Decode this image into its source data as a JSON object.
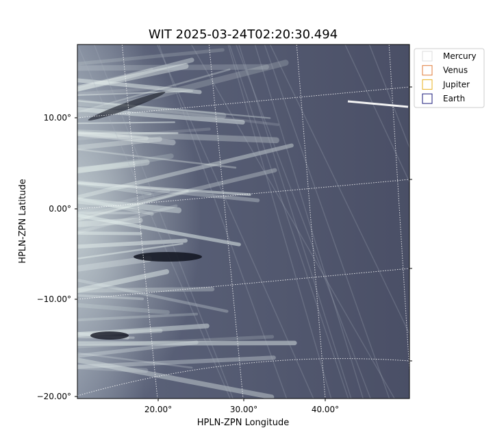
{
  "title": "WIT 2025-03-24T02:20:30.494",
  "x_axis": {
    "label": "HPLN-ZPN Longitude",
    "ticks": [
      "20.00°",
      "30.00°",
      "40.00°"
    ]
  },
  "y_axis": {
    "label": "HPLN-ZPN Latitude",
    "ticks": [
      "10.00°",
      "0.00°",
      "−10.00°",
      "−20.00°"
    ]
  },
  "legend": [
    {
      "label": "Mercury",
      "color": "#dddddd"
    },
    {
      "label": "Venus",
      "color": "#e07b39"
    },
    {
      "label": "Jupiter",
      "color": "#e8b020"
    },
    {
      "label": "Earth",
      "color": "#1a1a7a"
    }
  ]
}
